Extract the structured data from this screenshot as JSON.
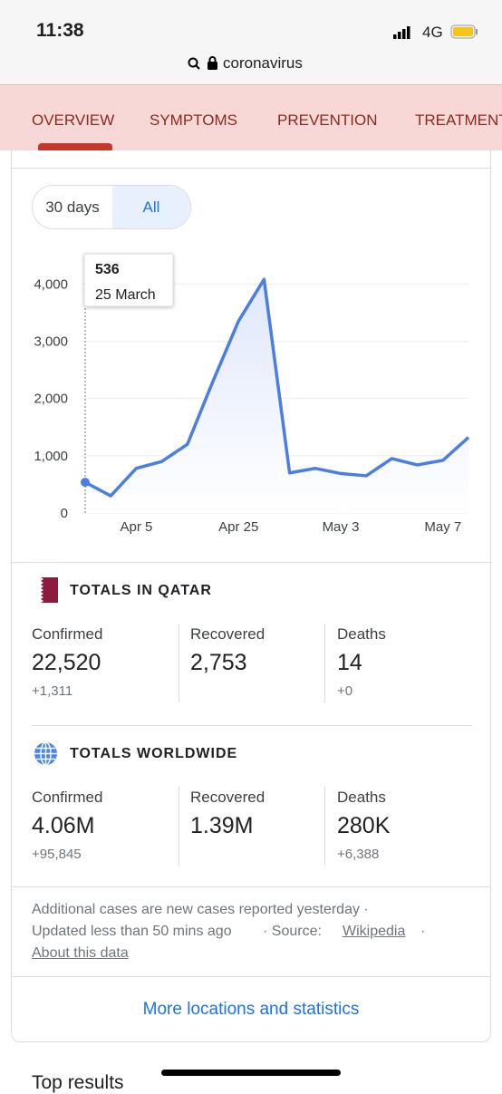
{
  "status_bar": {
    "time": "11:38",
    "network": "4G"
  },
  "url_bar": {
    "text": "coronavirus"
  },
  "tabs": [
    "OVERVIEW",
    "SYMPTOMS",
    "PREVENTION",
    "TREATMENTS"
  ],
  "toggle": {
    "options": [
      "30 days",
      "All"
    ]
  },
  "chart_data": {
    "type": "line",
    "color": "#4a7ee3",
    "categories": [
      null,
      null,
      "Apr 5",
      null,
      null,
      null,
      "Apr 25",
      null,
      null,
      null,
      "May 3",
      null,
      null,
      null,
      "May 7",
      null
    ],
    "values": [
      536,
      300,
      780,
      900,
      1200,
      2300,
      3350,
      4080,
      700,
      780,
      690,
      650,
      950,
      840,
      920,
      1320
    ],
    "ylim": [
      0,
      4400
    ],
    "yticks": [
      0,
      {
        "value": 1000,
        "label": "1,000"
      },
      {
        "value": 2000,
        "label": "2,000"
      },
      {
        "value": 3000,
        "label": "3,000"
      },
      {
        "value": 4000,
        "label": "4,000"
      }
    ],
    "grid": true,
    "tooltip_label": "25 March"
  },
  "qatar": {
    "title": "TOTALS IN QATAR",
    "stats": [
      {
        "label": "Confirmed",
        "value": "22,520",
        "change": "+1,311"
      },
      {
        "label": "Recovered",
        "value": "2,753"
      },
      {
        "label": "Deaths",
        "value": "14",
        "change": "+0"
      }
    ]
  },
  "worldwide": {
    "title": "TOTALS WORLDWIDE",
    "stats": [
      {
        "label": "Confirmed",
        "value": "4.06M",
        "change": "+95,845"
      },
      {
        "label": "Recovered",
        "value": "1.39M"
      },
      {
        "label": "Deaths",
        "value": "280K",
        "change": "+6,388"
      }
    ]
  },
  "footer": {
    "line1": "Additional cases are new cases reported yesterday ·",
    "updated": "Updated less than 50 mins ago",
    "source_label": "· Source:",
    "source_link": "Wikipedia",
    "about": "About this data"
  },
  "more_link": "More locations and statistics",
  "next_section": "Top results"
}
